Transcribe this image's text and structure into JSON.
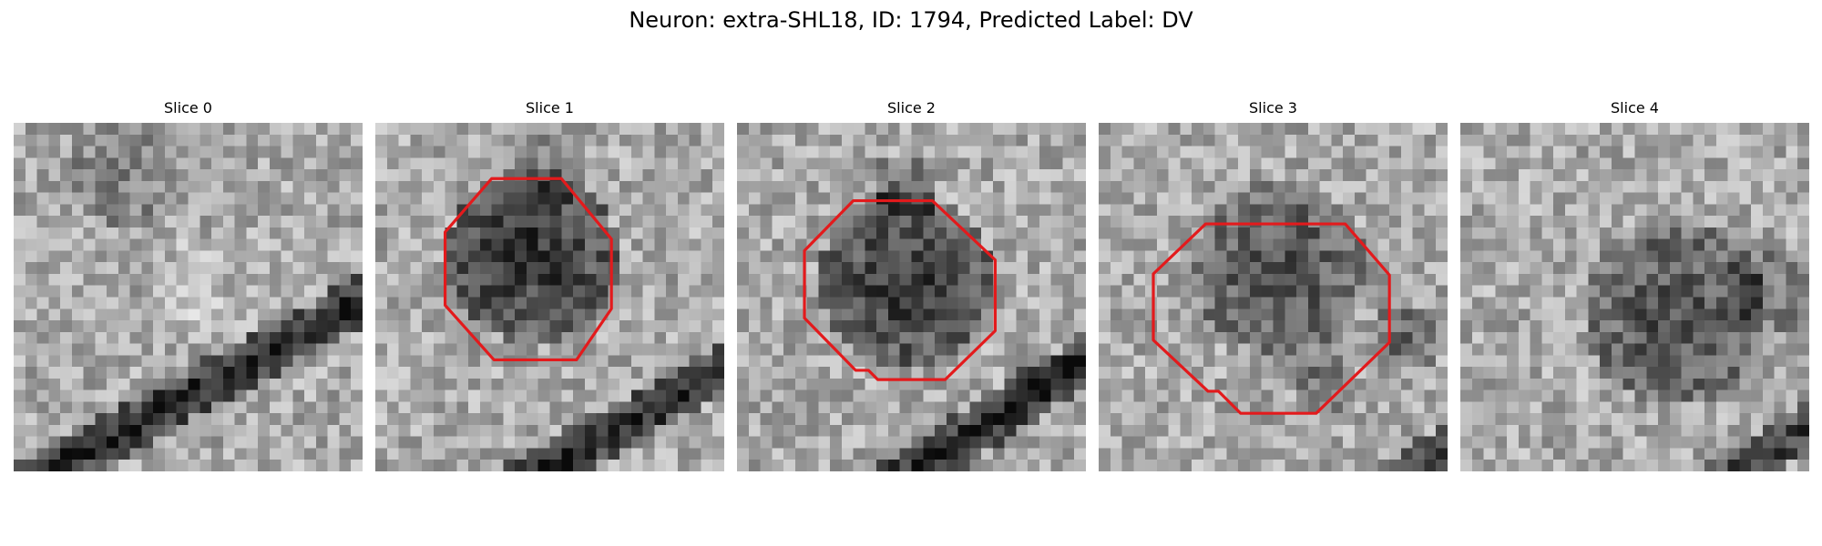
{
  "figure": {
    "title": "Neuron: extra-SHL18, ID: 1794, Predicted Label: DV"
  },
  "panels": [
    {
      "title": "Slice 0",
      "has_contour": false
    },
    {
      "title": "Slice 1",
      "has_contour": true
    },
    {
      "title": "Slice 2",
      "has_contour": true
    },
    {
      "title": "Slice 3",
      "has_contour": true
    },
    {
      "title": "Slice 4",
      "has_contour": false
    }
  ],
  "colors": {
    "contour": "#e31a1c",
    "colormap": "grayscale"
  }
}
